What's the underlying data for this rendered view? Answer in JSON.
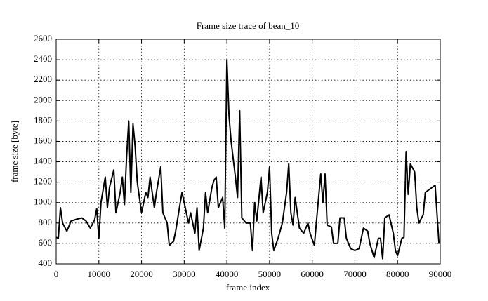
{
  "chart_data": {
    "type": "line",
    "title": "Frame size trace of bean_10",
    "x_label": "frame index",
    "y_label": "frame size [byte]",
    "x": [
      0,
      500,
      1000,
      1500,
      2500,
      3500,
      5000,
      6000,
      7000,
      8000,
      9000,
      9500,
      10000,
      10500,
      11500,
      12000,
      12500,
      13500,
      14000,
      15000,
      15500,
      16000,
      16500,
      17000,
      17500,
      18000,
      18500,
      19000,
      20000,
      21000,
      21500,
      22000,
      23000,
      23500,
      24500,
      25000,
      26000,
      26500,
      27500,
      28000,
      29000,
      29500,
      30000,
      31000,
      31500,
      32500,
      33000,
      33500,
      34500,
      35000,
      35500,
      36500,
      37000,
      37500,
      38000,
      39000,
      39500,
      40000,
      40500,
      41000,
      42000,
      42500,
      43000,
      43500,
      44500,
      45500,
      46000,
      46500,
      47000,
      48000,
      48500,
      49500,
      50000,
      50500,
      51000,
      52000,
      53000,
      54000,
      54500,
      55000,
      55500,
      56000,
      57000,
      58000,
      59000,
      59500,
      60500,
      61000,
      62000,
      62500,
      63000,
      63500,
      64500,
      65000,
      66000,
      66500,
      67500,
      68000,
      69000,
      70000,
      71000,
      72000,
      73000,
      73500,
      74500,
      75500,
      76000,
      76500,
      77000,
      78000,
      79000,
      79500,
      80000,
      81000,
      81500,
      82000,
      82500,
      83000,
      84000,
      84500,
      85000,
      86000,
      86500,
      88800,
      89700
    ],
    "series": [
      {
        "name": "bean_10",
        "color": "#000000",
        "values": [
          660,
          650,
          950,
          800,
          720,
          820,
          840,
          850,
          820,
          750,
          830,
          940,
          650,
          1000,
          1250,
          950,
          1150,
          1320,
          900,
          1100,
          1250,
          980,
          1450,
          1800,
          1100,
          1770,
          1550,
          1200,
          900,
          1100,
          1050,
          1250,
          950,
          1100,
          1350,
          900,
          800,
          580,
          620,
          720,
          980,
          1100,
          1000,
          800,
          900,
          700,
          950,
          530,
          750,
          1100,
          900,
          1150,
          1220,
          1250,
          950,
          1050,
          750,
          2400,
          1850,
          1600,
          1250,
          1050,
          1900,
          850,
          800,
          800,
          530,
          1000,
          820,
          1250,
          900,
          1100,
          1350,
          700,
          530,
          650,
          800,
          1100,
          1380,
          900,
          780,
          1050,
          750,
          700,
          800,
          700,
          580,
          820,
          1280,
          1000,
          1280,
          780,
          760,
          600,
          600,
          850,
          850,
          650,
          550,
          530,
          550,
          750,
          720,
          600,
          460,
          650,
          650,
          450,
          850,
          880,
          700,
          530,
          480,
          650,
          660,
          1500,
          1080,
          1380,
          1300,
          950,
          800,
          880,
          1100,
          1170,
          600
        ]
      }
    ],
    "xlim": [
      0,
      90000
    ],
    "ylim": [
      400,
      2600
    ],
    "xticks": [
      0,
      10000,
      20000,
      30000,
      40000,
      50000,
      60000,
      70000,
      80000,
      90000
    ],
    "yticks": [
      400,
      600,
      800,
      1000,
      1200,
      1400,
      1600,
      1800,
      2000,
      2200,
      2400,
      2600
    ],
    "grid": true
  }
}
